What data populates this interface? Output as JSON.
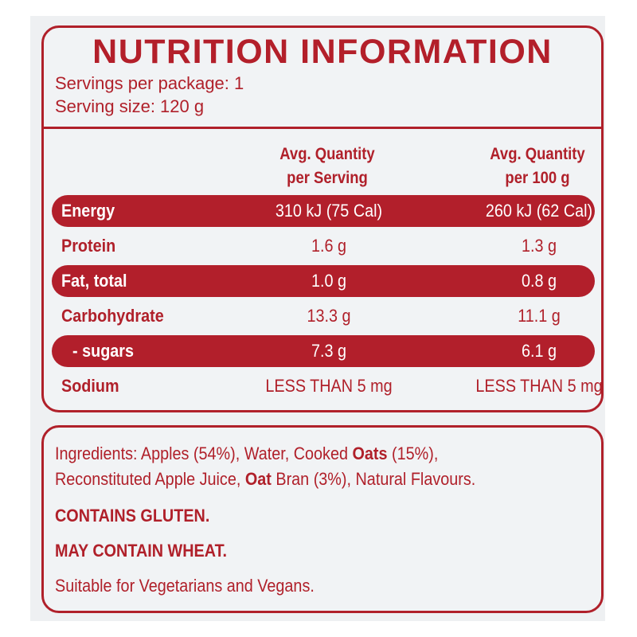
{
  "title": "NUTRITION INFORMATION",
  "servings_per_package": "Servings per package: 1",
  "serving_size": "Serving size: 120 g",
  "columns": {
    "per_serving": [
      "Avg. Quantity",
      "per Serving"
    ],
    "per_100g": [
      "Avg. Quantity",
      "per 100 g"
    ]
  },
  "rows": [
    {
      "name": "Energy",
      "per_serving": "310 kJ (75 Cal)",
      "per_100g": "260 kJ (62 Cal)"
    },
    {
      "name": "Protein",
      "per_serving": "1.6 g",
      "per_100g": "1.3 g"
    },
    {
      "name": "Fat, total",
      "per_serving": "1.0 g",
      "per_100g": "0.8 g"
    },
    {
      "name": "Carbohydrate",
      "per_serving": "13.3 g",
      "per_100g": "11.1 g"
    },
    {
      "name": "- sugars",
      "per_serving": "7.3 g",
      "per_100g": "6.1 g"
    },
    {
      "name": "Sodium",
      "per_serving": "LESS THAN 5 mg",
      "per_100g": "LESS THAN 5 mg"
    }
  ],
  "ingredients": {
    "line1_a": "Ingredients: Apples (54%), Water, Cooked ",
    "line1_b": "Oats",
    "line1_c": " (15%),",
    "line2_a": "Reconstituted Apple Juice, ",
    "line2_b": "Oat",
    "line2_c": " Bran (3%), Natural Flavours."
  },
  "contains": "CONTAINS GLUTEN.",
  "may_contain": "MAY CONTAIN WHEAT.",
  "suitable": "Suitable for Vegetarians and Vegans.",
  "colors": {
    "accent": "#b0202a",
    "panel": "#f1f3f5",
    "text_on_accent": "#ffffff"
  }
}
